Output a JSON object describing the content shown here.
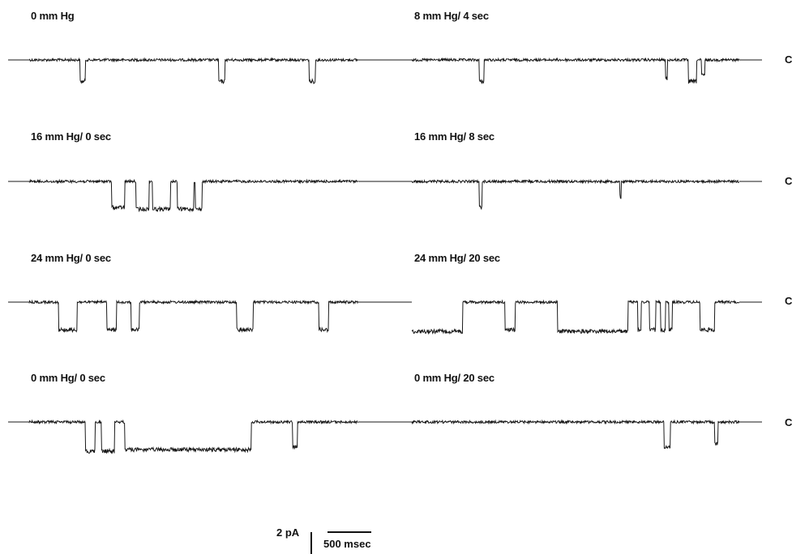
{
  "panels": [
    {
      "label": "0 mm Hg",
      "events": [
        [
          0.155,
          0.17,
          0.7
        ],
        [
          0.575,
          0.595,
          0.7
        ],
        [
          0.85,
          0.87,
          0.7
        ]
      ]
    },
    {
      "label": "8 mm Hg/ 4 sec",
      "events": [
        [
          0.205,
          0.22,
          0.7
        ],
        [
          0.775,
          0.78,
          0.6
        ],
        [
          0.845,
          0.87,
          0.7
        ],
        [
          0.885,
          0.895,
          0.5
        ]
      ]
    },
    {
      "label": "16 mm Hg/ 0 sec",
      "events": [
        [
          0.25,
          0.29,
          0.85
        ],
        [
          0.325,
          0.365,
          0.9
        ],
        [
          0.375,
          0.43,
          0.9
        ],
        [
          0.45,
          0.5,
          0.9
        ],
        [
          0.505,
          0.525,
          0.9
        ]
      ]
    },
    {
      "label": "16 mm Hg/ 8 sec",
      "events": [
        [
          0.205,
          0.215,
          0.85
        ],
        [
          0.635,
          0.64,
          0.5
        ]
      ]
    },
    {
      "label": "24 mm Hg/ 0 sec",
      "events": [
        [
          0.09,
          0.145,
          0.9
        ],
        [
          0.235,
          0.265,
          0.9
        ],
        [
          0.31,
          0.335,
          0.9
        ],
        [
          0.63,
          0.68,
          0.9
        ],
        [
          0.88,
          0.91,
          0.9
        ]
      ]
    },
    {
      "label": "24 mm Hg/ 20 sec",
      "events": [
        [
          0.0,
          0.155,
          0.95
        ],
        [
          0.285,
          0.315,
          0.9
        ],
        [
          0.445,
          0.66,
          0.95
        ],
        [
          0.69,
          0.7,
          0.9
        ],
        [
          0.725,
          0.745,
          0.9
        ],
        [
          0.76,
          0.775,
          0.9
        ],
        [
          0.785,
          0.795,
          0.9
        ],
        [
          0.88,
          0.925,
          0.9
        ]
      ]
    },
    {
      "label": "0 mm Hg/ 0 sec",
      "events": [
        [
          0.17,
          0.2,
          0.95
        ],
        [
          0.22,
          0.26,
          0.95
        ],
        [
          0.29,
          0.675,
          0.9
        ],
        [
          0.8,
          0.815,
          0.8
        ]
      ]
    },
    {
      "label": "0 mm Hg/ 20 sec",
      "events": [
        [
          0.77,
          0.79,
          0.8
        ],
        [
          0.925,
          0.935,
          0.7
        ]
      ]
    }
  ],
  "right_markers": [
    "C",
    "C",
    "C",
    "C"
  ],
  "scale_bar": {
    "current_label": "2 pA",
    "time_label": "500 msec"
  }
}
